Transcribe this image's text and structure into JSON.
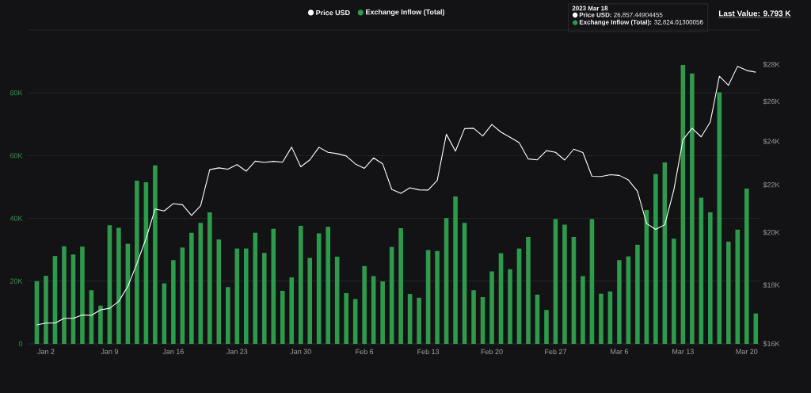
{
  "chart_data": {
    "type": "bar",
    "legend": "top",
    "grid": "y",
    "log": "y2",
    "annotations": [
      "Last Value: 9.793 K",
      "2023 Mar 18",
      "**Price USD:** 26,857.44904455",
      "**Exchange Inflow (Total):** 32,824.01300056"
    ],
    "x": [
      "2023-01-01",
      "2023-01-02",
      "2023-01-03",
      "2023-01-04",
      "2023-01-05",
      "2023-01-06",
      "2023-01-07",
      "2023-01-08",
      "2023-01-09",
      "2023-01-10",
      "2023-01-11",
      "2023-01-12",
      "2023-01-13",
      "2023-01-14",
      "2023-01-15",
      "2023-01-16",
      "2023-01-17",
      "2023-01-18",
      "2023-01-19",
      "2023-01-20",
      "2023-01-21",
      "2023-01-22",
      "2023-01-23",
      "2023-01-24",
      "2023-01-25",
      "2023-01-26",
      "2023-01-27",
      "2023-01-28",
      "2023-01-29",
      "2023-01-30",
      "2023-01-31",
      "2023-02-01",
      "2023-02-02",
      "2023-02-03",
      "2023-02-04",
      "2023-02-05",
      "2023-02-06",
      "2023-02-07",
      "2023-02-08",
      "2023-02-09",
      "2023-02-10",
      "2023-02-11",
      "2023-02-12",
      "2023-02-13",
      "2023-02-14",
      "2023-02-15",
      "2023-02-16",
      "2023-02-17",
      "2023-02-18",
      "2023-02-19",
      "2023-02-20",
      "2023-02-21",
      "2023-02-22",
      "2023-02-23",
      "2023-02-24",
      "2023-02-25",
      "2023-02-26",
      "2023-02-27",
      "2023-02-28",
      "2023-03-01",
      "2023-03-02",
      "2023-03-03",
      "2023-03-04",
      "2023-03-05",
      "2023-03-06",
      "2023-03-07",
      "2023-03-08",
      "2023-03-09",
      "2023-03-10",
      "2023-03-11",
      "2023-03-12",
      "2023-03-13",
      "2023-03-14",
      "2023-03-15",
      "2023-03-16",
      "2023-03-17",
      "2023-03-18",
      "2023-03-19",
      "2023-03-20",
      "2023-03-21"
    ],
    "series": [
      {
        "name": "Price USD",
        "type": "line",
        "axis": "y2",
        "color": "#ffffff",
        "values": [
          16620,
          16680,
          16680,
          16840,
          16840,
          16950,
          16940,
          17130,
          17180,
          17420,
          17950,
          18790,
          19760,
          20960,
          20880,
          21190,
          21140,
          20690,
          21100,
          22680,
          22760,
          22700,
          22910,
          22610,
          23070,
          23010,
          23060,
          23020,
          23730,
          22810,
          23130,
          23720,
          23480,
          23420,
          23310,
          22940,
          22740,
          23220,
          22950,
          21800,
          21630,
          21870,
          21780,
          21770,
          22200,
          24350,
          23540,
          24620,
          24640,
          24260,
          24830,
          24450,
          24200,
          23940,
          23170,
          23130,
          23560,
          23480,
          23120,
          23630,
          23470,
          22380,
          22370,
          22450,
          22420,
          22220,
          21720,
          20360,
          20120,
          20310,
          21780,
          24080,
          24640,
          24220,
          24950,
          27350,
          26860,
          27900,
          27670,
          27570
        ]
      },
      {
        "name": "Exchange Inflow (Total)",
        "color": "#2e9a4b",
        "values": [
          20000,
          21700,
          28000,
          31100,
          28500,
          31000,
          17100,
          12200,
          37800,
          37000,
          31900,
          52000,
          51500,
          56900,
          19300,
          26700,
          30700,
          35400,
          38600,
          41900,
          33300,
          18100,
          30400,
          30400,
          35400,
          29000,
          36700,
          16900,
          21200,
          37600,
          27400,
          35200,
          37300,
          27800,
          16200,
          14300,
          24800,
          21600,
          19900,
          30900,
          36900,
          15900,
          14700,
          29900,
          29600,
          40100,
          47000,
          38600,
          17100,
          14900,
          23100,
          28900,
          23800,
          30400,
          34100,
          15700,
          10800,
          39800,
          38000,
          34100,
          21600,
          39800,
          16000,
          16700,
          26700,
          27900,
          31600,
          42700,
          54100,
          57800,
          33500,
          88900,
          86200,
          46600,
          41900,
          80200,
          32600,
          36400,
          49500,
          9700
        ]
      }
    ],
    "xlim": [
      "2022-12-31T00:00",
      "2023-03-21T12:00"
    ],
    "xticks": [
      {
        "value": "2023-01-02",
        "label": "Jan 2"
      },
      {
        "value": "2023-01-09",
        "label": "Jan 9"
      },
      {
        "value": "2023-01-16",
        "label": "Jan 16"
      },
      {
        "value": "2023-01-23",
        "label": "Jan 23"
      },
      {
        "value": "2023-01-30",
        "label": "Jan 30"
      },
      {
        "value": "2023-02-06",
        "label": "Feb 6"
      },
      {
        "value": "2023-02-13",
        "label": "Feb 13"
      },
      {
        "value": "2023-02-20",
        "label": "Feb 20"
      },
      {
        "value": "2023-02-27",
        "label": "Feb 27"
      },
      {
        "value": "2023-03-06",
        "label": "Mar 6"
      },
      {
        "value": "2023-03-13",
        "label": "Mar 13"
      },
      {
        "value": "2023-03-20",
        "label": "Mar 20"
      }
    ],
    "ylim": [
      0,
      100000
    ],
    "yticks": [
      0,
      {
        "value": 20000,
        "label": "20K"
      },
      {
        "value": 40000,
        "label": "40K"
      },
      {
        "value": 60000,
        "label": "60K"
      },
      {
        "value": 80000,
        "label": "80K"
      },
      {
        "value": 100000,
        "label": null
      }
    ],
    "y2lim": [
      16000,
      30000
    ],
    "y2ticks": [
      {
        "value": 16000,
        "label": "$16K"
      },
      {
        "value": 18000,
        "label": "$18K"
      },
      {
        "value": 20000,
        "label": "$20K"
      },
      {
        "value": 22000,
        "label": "$22K"
      },
      {
        "value": 24000,
        "label": "$24K"
      },
      {
        "value": 26000,
        "label": "$26K"
      },
      {
        "value": 28000,
        "label": "$28K"
      }
    ]
  }
}
